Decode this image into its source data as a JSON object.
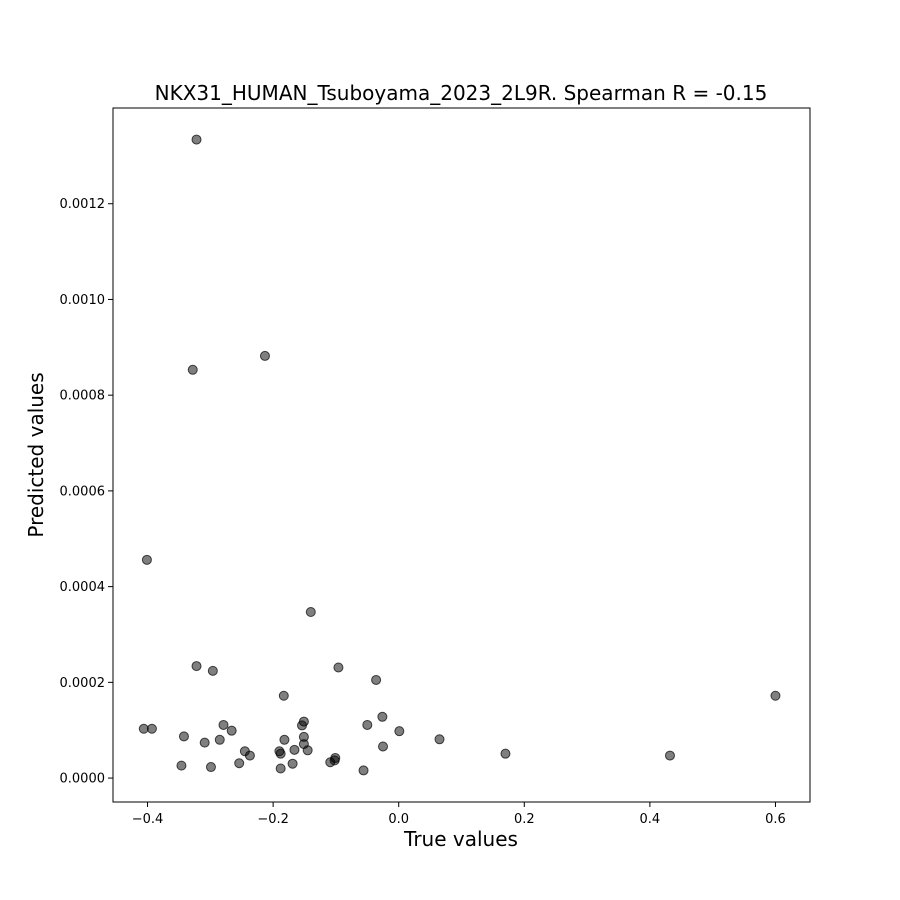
{
  "chart_data": {
    "type": "scatter",
    "title": "NKX31_HUMAN_Tsuboyama_2023_2L9R. Spearman R = -0.15",
    "xlabel": "True values",
    "ylabel": "Predicted values",
    "xlim": [
      -0.455,
      0.655
    ],
    "ylim": [
      -5e-05,
      0.0014
    ],
    "xticks": [
      -0.4,
      -0.2,
      0.0,
      0.2,
      0.4,
      0.6
    ],
    "xtick_labels": [
      "−0.4",
      "−0.2",
      "0.0",
      "0.2",
      "0.4",
      "0.6"
    ],
    "yticks": [
      0.0,
      0.0002,
      0.0004,
      0.0006,
      0.0008,
      0.001,
      0.0012
    ],
    "ytick_labels": [
      "0.0000",
      "0.0002",
      "0.0004",
      "0.0006",
      "0.0008",
      "0.0010",
      "0.0012"
    ],
    "grid": false,
    "marker_color": "#000000",
    "marker_alpha": 0.5,
    "points": [
      [
        -0.322,
        0.001334
      ],
      [
        -0.213,
        0.000882
      ],
      [
        -0.328,
        0.000853
      ],
      [
        -0.401,
        0.000456
      ],
      [
        -0.14,
        0.000347
      ],
      [
        -0.322,
        0.000234
      ],
      [
        -0.296,
        0.000224
      ],
      [
        -0.096,
        0.000231
      ],
      [
        -0.036,
        0.000205
      ],
      [
        -0.183,
        0.000172
      ],
      [
        0.6,
        0.000172
      ],
      [
        -0.406,
        0.000103
      ],
      [
        -0.393,
        0.000103
      ],
      [
        -0.342,
        8.7e-05
      ],
      [
        -0.309,
        7.4e-05
      ],
      [
        -0.285,
        8e-05
      ],
      [
        -0.279,
        0.000111
      ],
      [
        -0.266,
        9.9e-05
      ],
      [
        -0.245,
        5.6e-05
      ],
      [
        -0.237,
        4.7e-05
      ],
      [
        -0.254,
        3.1e-05
      ],
      [
        -0.19,
        5.6e-05
      ],
      [
        -0.188,
        5.1e-05
      ],
      [
        -0.182,
        8e-05
      ],
      [
        -0.166,
        5.9e-05
      ],
      [
        -0.154,
        0.00011
      ],
      [
        -0.151,
        0.000118
      ],
      [
        -0.151,
        8.6e-05
      ],
      [
        -0.151,
        7.1e-05
      ],
      [
        -0.145,
        5.8e-05
      ],
      [
        -0.169,
        3e-05
      ],
      [
        -0.188,
        2e-05
      ],
      [
        -0.346,
        2.6e-05
      ],
      [
        -0.299,
        2.3e-05
      ],
      [
        -0.109,
        3.3e-05
      ],
      [
        -0.102,
        3.7e-05
      ],
      [
        -0.101,
        4.2e-05
      ],
      [
        -0.056,
        1.6e-05
      ],
      [
        -0.05,
        0.000111
      ],
      [
        -0.026,
        0.000128
      ],
      [
        -0.025,
        6.6e-05
      ],
      [
        0.001,
        9.8e-05
      ],
      [
        0.065,
        8.1e-05
      ],
      [
        0.17,
        5.1e-05
      ],
      [
        0.432,
        4.7e-05
      ]
    ]
  }
}
